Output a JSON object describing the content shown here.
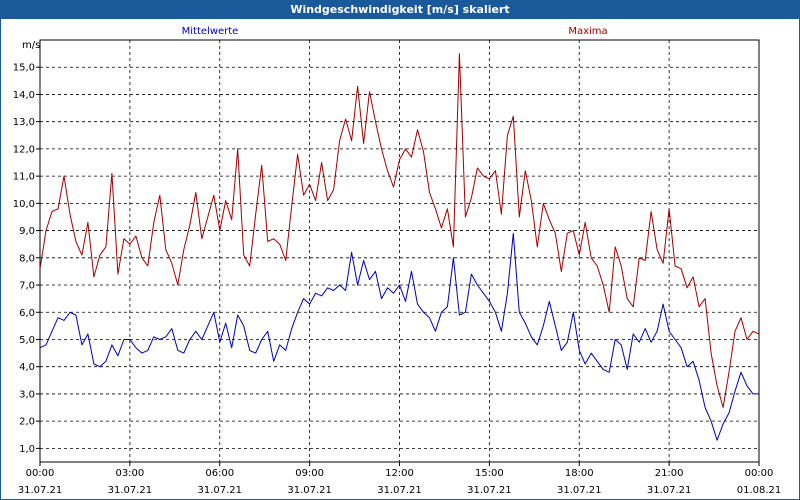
{
  "window": {
    "title": "Windgeschwindigkeit [m/s] skaliert"
  },
  "chart_data": {
    "type": "line",
    "title": "Windgeschwindigkeit [m/s] skaliert",
    "ylabel": "m/s",
    "xlabel": "",
    "ylim": [
      0.5,
      16.0
    ],
    "xlim": [
      0,
      24
    ],
    "yticks": [
      1.0,
      2.0,
      3.0,
      4.0,
      5.0,
      6.0,
      7.0,
      8.0,
      9.0,
      10.0,
      11.0,
      12.0,
      13.0,
      14.0,
      15.0
    ],
    "ytick_labels": [
      "1,0",
      "2,0",
      "3,0",
      "4,0",
      "5,0",
      "6,0",
      "7,0",
      "8,0",
      "9,0",
      "10,0",
      "11,0",
      "12,0",
      "13,0",
      "14,0",
      "15,0"
    ],
    "xticks": [
      {
        "x": 0,
        "time": "00:00",
        "date": "31.07.21"
      },
      {
        "x": 3,
        "time": "03:00",
        "date": "31.07.21"
      },
      {
        "x": 6,
        "time": "06:00",
        "date": "31.07.21"
      },
      {
        "x": 9,
        "time": "09:00",
        "date": "31.07.21"
      },
      {
        "x": 12,
        "time": "12:00",
        "date": "31.07.21"
      },
      {
        "x": 15,
        "time": "15:00",
        "date": "31.07.21"
      },
      {
        "x": 18,
        "time": "18:00",
        "date": "31.07.21"
      },
      {
        "x": 21,
        "time": "21:00",
        "date": "31.07.21"
      },
      {
        "x": 24,
        "time": "00:00",
        "date": "01.08.21"
      }
    ],
    "grid": true,
    "legend_position": "top",
    "series": [
      {
        "name": "Mittelwerte",
        "color": "#0000b0",
        "points": [
          [
            0.0,
            4.7
          ],
          [
            0.2,
            4.8
          ],
          [
            0.4,
            5.3
          ],
          [
            0.6,
            5.8
          ],
          [
            0.8,
            5.7
          ],
          [
            1.0,
            6.0
          ],
          [
            1.2,
            5.9
          ],
          [
            1.4,
            4.8
          ],
          [
            1.6,
            5.2
          ],
          [
            1.8,
            4.1
          ],
          [
            2.0,
            4.0
          ],
          [
            2.2,
            4.2
          ],
          [
            2.4,
            4.8
          ],
          [
            2.6,
            4.4
          ],
          [
            2.8,
            5.0
          ],
          [
            3.0,
            5.0
          ],
          [
            3.2,
            4.7
          ],
          [
            3.4,
            4.5
          ],
          [
            3.6,
            4.6
          ],
          [
            3.8,
            5.1
          ],
          [
            4.0,
            5.0
          ],
          [
            4.2,
            5.1
          ],
          [
            4.4,
            5.4
          ],
          [
            4.6,
            4.6
          ],
          [
            4.8,
            4.5
          ],
          [
            5.0,
            5.0
          ],
          [
            5.2,
            5.3
          ],
          [
            5.4,
            5.0
          ],
          [
            5.6,
            5.5
          ],
          [
            5.8,
            6.0
          ],
          [
            6.0,
            4.9
          ],
          [
            6.2,
            5.6
          ],
          [
            6.4,
            4.7
          ],
          [
            6.6,
            5.9
          ],
          [
            6.8,
            5.5
          ],
          [
            7.0,
            4.6
          ],
          [
            7.2,
            4.5
          ],
          [
            7.4,
            5.0
          ],
          [
            7.6,
            5.3
          ],
          [
            7.8,
            4.2
          ],
          [
            8.0,
            4.8
          ],
          [
            8.2,
            4.6
          ],
          [
            8.4,
            5.4
          ],
          [
            8.6,
            6.0
          ],
          [
            8.8,
            6.5
          ],
          [
            9.0,
            6.3
          ],
          [
            9.2,
            6.7
          ],
          [
            9.4,
            6.6
          ],
          [
            9.6,
            6.9
          ],
          [
            9.8,
            6.8
          ],
          [
            10.0,
            7.0
          ],
          [
            10.2,
            6.8
          ],
          [
            10.4,
            8.2
          ],
          [
            10.6,
            7.0
          ],
          [
            10.8,
            7.9
          ],
          [
            11.0,
            7.2
          ],
          [
            11.2,
            7.5
          ],
          [
            11.4,
            6.5
          ],
          [
            11.6,
            6.9
          ],
          [
            11.8,
            6.7
          ],
          [
            12.0,
            7.0
          ],
          [
            12.2,
            6.4
          ],
          [
            12.4,
            7.5
          ],
          [
            12.6,
            6.3
          ],
          [
            12.8,
            6.0
          ],
          [
            13.0,
            5.8
          ],
          [
            13.2,
            5.3
          ],
          [
            13.4,
            6.0
          ],
          [
            13.6,
            6.2
          ],
          [
            13.8,
            8.0
          ],
          [
            14.0,
            5.9
          ],
          [
            14.2,
            6.0
          ],
          [
            14.4,
            7.4
          ],
          [
            14.6,
            7.0
          ],
          [
            14.8,
            6.7
          ],
          [
            15.0,
            6.4
          ],
          [
            15.2,
            6.0
          ],
          [
            15.4,
            5.3
          ],
          [
            15.6,
            6.7
          ],
          [
            15.8,
            8.9
          ],
          [
            16.0,
            6.0
          ],
          [
            16.2,
            5.6
          ],
          [
            16.4,
            5.1
          ],
          [
            16.6,
            4.8
          ],
          [
            16.8,
            5.5
          ],
          [
            17.0,
            6.4
          ],
          [
            17.2,
            5.5
          ],
          [
            17.4,
            4.6
          ],
          [
            17.6,
            4.9
          ],
          [
            17.8,
            6.0
          ],
          [
            18.0,
            4.6
          ],
          [
            18.2,
            4.1
          ],
          [
            18.4,
            4.5
          ],
          [
            18.6,
            4.2
          ],
          [
            18.8,
            3.9
          ],
          [
            19.0,
            3.8
          ],
          [
            19.2,
            5.0
          ],
          [
            19.4,
            4.8
          ],
          [
            19.6,
            3.9
          ],
          [
            19.8,
            5.2
          ],
          [
            20.0,
            4.9
          ],
          [
            20.2,
            5.4
          ],
          [
            20.4,
            4.9
          ],
          [
            20.6,
            5.3
          ],
          [
            20.8,
            6.3
          ],
          [
            21.0,
            5.3
          ],
          [
            21.2,
            5.0
          ],
          [
            21.4,
            4.7
          ],
          [
            21.6,
            4.0
          ],
          [
            21.8,
            4.2
          ],
          [
            22.0,
            3.5
          ],
          [
            22.2,
            2.5
          ],
          [
            22.4,
            2.0
          ],
          [
            22.6,
            1.3
          ],
          [
            22.8,
            1.9
          ],
          [
            23.0,
            2.3
          ],
          [
            23.2,
            3.1
          ],
          [
            23.4,
            3.8
          ],
          [
            23.6,
            3.3
          ],
          [
            23.8,
            3.0
          ],
          [
            24.0,
            3.0
          ]
        ]
      },
      {
        "name": "Maxima",
        "color": "#a00000",
        "points": [
          [
            0.0,
            7.6
          ],
          [
            0.2,
            9.0
          ],
          [
            0.4,
            9.7
          ],
          [
            0.6,
            9.8
          ],
          [
            0.8,
            11.0
          ],
          [
            1.0,
            9.6
          ],
          [
            1.2,
            8.6
          ],
          [
            1.4,
            8.1
          ],
          [
            1.6,
            9.3
          ],
          [
            1.8,
            7.3
          ],
          [
            2.0,
            8.1
          ],
          [
            2.2,
            8.4
          ],
          [
            2.4,
            11.1
          ],
          [
            2.6,
            7.4
          ],
          [
            2.8,
            8.7
          ],
          [
            3.0,
            8.5
          ],
          [
            3.2,
            8.8
          ],
          [
            3.4,
            8.0
          ],
          [
            3.6,
            7.7
          ],
          [
            3.8,
            9.3
          ],
          [
            4.0,
            10.3
          ],
          [
            4.2,
            8.3
          ],
          [
            4.4,
            7.8
          ],
          [
            4.6,
            7.0
          ],
          [
            4.8,
            8.3
          ],
          [
            5.0,
            9.2
          ],
          [
            5.2,
            10.4
          ],
          [
            5.4,
            8.7
          ],
          [
            5.6,
            9.5
          ],
          [
            5.8,
            10.3
          ],
          [
            6.0,
            9.0
          ],
          [
            6.2,
            10.1
          ],
          [
            6.4,
            9.4
          ],
          [
            6.6,
            12.0
          ],
          [
            6.8,
            8.1
          ],
          [
            7.0,
            7.7
          ],
          [
            7.2,
            9.6
          ],
          [
            7.4,
            11.4
          ],
          [
            7.6,
            8.6
          ],
          [
            7.8,
            8.7
          ],
          [
            8.0,
            8.5
          ],
          [
            8.2,
            7.9
          ],
          [
            8.4,
            9.9
          ],
          [
            8.6,
            11.8
          ],
          [
            8.8,
            10.3
          ],
          [
            9.0,
            10.7
          ],
          [
            9.2,
            10.1
          ],
          [
            9.4,
            11.5
          ],
          [
            9.6,
            10.1
          ],
          [
            9.8,
            10.5
          ],
          [
            10.0,
            12.3
          ],
          [
            10.2,
            13.1
          ],
          [
            10.4,
            12.3
          ],
          [
            10.6,
            14.3
          ],
          [
            10.8,
            12.2
          ],
          [
            11.0,
            14.1
          ],
          [
            11.2,
            13.0
          ],
          [
            11.4,
            12.0
          ],
          [
            11.6,
            11.2
          ],
          [
            11.8,
            10.6
          ],
          [
            12.0,
            11.6
          ],
          [
            12.2,
            12.0
          ],
          [
            12.4,
            11.7
          ],
          [
            12.6,
            12.7
          ],
          [
            12.8,
            11.9
          ],
          [
            13.0,
            10.4
          ],
          [
            13.2,
            9.8
          ],
          [
            13.4,
            9.1
          ],
          [
            13.6,
            9.8
          ],
          [
            13.8,
            8.4
          ],
          [
            14.0,
            15.5
          ],
          [
            14.2,
            9.5
          ],
          [
            14.4,
            10.2
          ],
          [
            14.6,
            11.3
          ],
          [
            14.8,
            11.0
          ],
          [
            15.0,
            10.9
          ],
          [
            15.2,
            11.2
          ],
          [
            15.4,
            9.6
          ],
          [
            15.6,
            12.5
          ],
          [
            15.8,
            13.2
          ],
          [
            16.0,
            9.5
          ],
          [
            16.2,
            11.2
          ],
          [
            16.4,
            10.1
          ],
          [
            16.6,
            8.4
          ],
          [
            16.8,
            10.0
          ],
          [
            17.0,
            9.4
          ],
          [
            17.2,
            8.9
          ],
          [
            17.4,
            7.5
          ],
          [
            17.6,
            8.9
          ],
          [
            17.8,
            9.0
          ],
          [
            18.0,
            8.1
          ],
          [
            18.2,
            9.3
          ],
          [
            18.4,
            8.0
          ],
          [
            18.6,
            7.7
          ],
          [
            18.8,
            7.0
          ],
          [
            19.0,
            6.0
          ],
          [
            19.2,
            8.4
          ],
          [
            19.4,
            7.7
          ],
          [
            19.6,
            6.5
          ],
          [
            19.8,
            6.2
          ],
          [
            20.0,
            8.0
          ],
          [
            20.2,
            7.9
          ],
          [
            20.4,
            9.7
          ],
          [
            20.6,
            8.3
          ],
          [
            20.8,
            7.8
          ],
          [
            21.0,
            9.8
          ],
          [
            21.2,
            7.7
          ],
          [
            21.4,
            7.6
          ],
          [
            21.6,
            6.9
          ],
          [
            21.8,
            7.3
          ],
          [
            22.0,
            6.2
          ],
          [
            22.2,
            6.5
          ],
          [
            22.4,
            4.5
          ],
          [
            22.6,
            3.3
          ],
          [
            22.8,
            2.5
          ],
          [
            23.0,
            3.8
          ],
          [
            23.2,
            5.3
          ],
          [
            23.4,
            5.8
          ],
          [
            23.6,
            5.0
          ],
          [
            23.8,
            5.3
          ],
          [
            24.0,
            5.2
          ]
        ]
      }
    ]
  }
}
